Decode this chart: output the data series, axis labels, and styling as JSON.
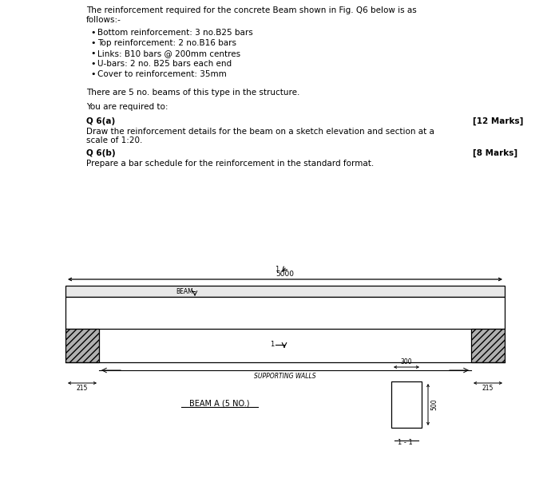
{
  "title_line1": "The reinforcement required for the concrete Beam shown in Fig. Q6 below is as",
  "title_line2": "follows:-",
  "bullets": [
    "Bottom reinforcement: 3 no.B25 bars",
    "Top reinforcement: 2 no.B16 bars",
    "Links: B10 bars @ 200mm centres",
    "U-bars: 2 no. B25 bars each end",
    "Cover to reinforcement: 35mm"
  ],
  "para1": "There are 5 no. beams of this type in the structure.",
  "para2": "You are required to:",
  "q6a_label": "Q 6(a)",
  "q6a_marks": "[12 Marks]",
  "q6a_body1": "Draw the reinforcement details for the beam on a sketch elevation and section at a",
  "q6a_body2": "scale of 1:20.",
  "q6b_label": "Q 6(b)",
  "q6b_marks": "[8 Marks]",
  "q6b_body": "Prepare a bar schedule for the reinforcement in the standard format.",
  "dim_5000": "5000",
  "dim_300": "300",
  "dim_500": "500",
  "dim_215": "215",
  "label_beam": "BEAM",
  "label_supporting": "SUPPORTING WALLS",
  "label_beam_a": "BEAM A (5 NO.)",
  "label_scale": "1 - 1",
  "section_num": "1"
}
